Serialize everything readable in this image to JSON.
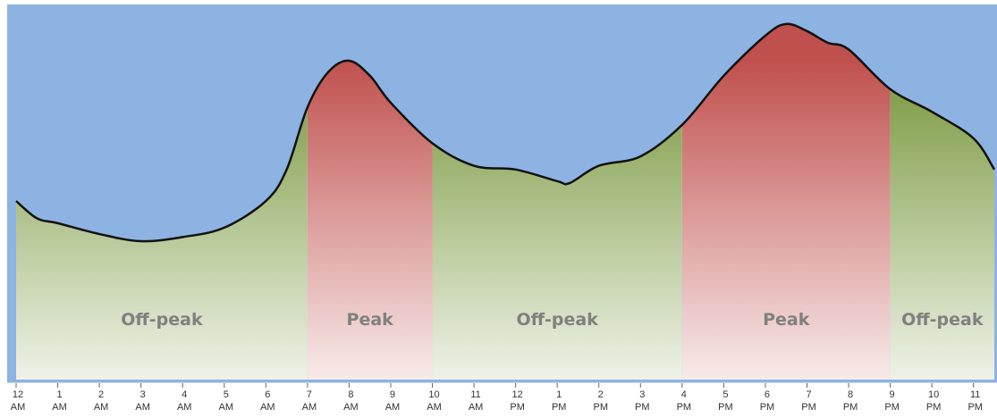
{
  "chart_data": {
    "type": "area",
    "x": [
      0,
      0.5,
      1,
      2,
      3,
      4,
      5,
      6,
      6.5,
      7,
      7.5,
      8,
      8.5,
      9,
      10,
      11,
      12,
      13,
      13.3,
      14,
      15,
      16,
      17,
      18,
      18.5,
      19,
      19.5,
      20,
      21,
      22,
      23,
      23.5
    ],
    "series": [
      {
        "values": [
          47.6,
          43,
          41.7,
          38.8,
          36.9,
          38,
          40.5,
          47.6,
          56,
          72.6,
          82,
          85,
          81,
          73.8,
          63,
          57,
          56,
          52.9,
          52.4,
          57,
          59.5,
          67.9,
          81,
          91.7,
          94.8,
          92.9,
          89.8,
          88,
          77.4,
          71.4,
          64.3,
          56
        ]
      }
    ],
    "xlim": [
      0,
      23.5
    ],
    "ylim": [
      0,
      100
    ],
    "xticks": [
      {
        "value": 0,
        "label": "12 AM"
      },
      {
        "value": 1,
        "label": "1 AM"
      },
      {
        "value": 2,
        "label": "2 AM"
      },
      {
        "value": 3,
        "label": "3 AM"
      },
      {
        "value": 4,
        "label": "4 AM"
      },
      {
        "value": 5,
        "label": "5 AM"
      },
      {
        "value": 6,
        "label": "6 AM"
      },
      {
        "value": 7,
        "label": "7 AM"
      },
      {
        "value": 8,
        "label": "8 AM"
      },
      {
        "value": 9,
        "label": "9 AM"
      },
      {
        "value": 10,
        "label": "10 AM"
      },
      {
        "value": 11,
        "label": "11 AM"
      },
      {
        "value": 12,
        "label": "12 PM"
      },
      {
        "value": 13,
        "label": "1 PM"
      },
      {
        "value": 14,
        "label": "2 PM"
      },
      {
        "value": 15,
        "label": "3 PM"
      },
      {
        "value": 16,
        "label": "4 PM"
      },
      {
        "value": 17,
        "label": "5 PM"
      },
      {
        "value": 18,
        "label": "6 PM"
      },
      {
        "value": 19,
        "label": "7 PM"
      },
      {
        "value": 20,
        "label": "8 PM"
      },
      {
        "value": 21,
        "label": "9 PM"
      },
      {
        "value": 22,
        "label": "10 PM"
      },
      {
        "value": 23,
        "label": "11 PM"
      }
    ],
    "zones": [
      {
        "label": "Off-peak",
        "start": 0,
        "end": 7,
        "color": "#76963a"
      },
      {
        "label": "Peak",
        "start": 7,
        "end": 10,
        "color": "#c0504d"
      },
      {
        "label": "Off-peak",
        "start": 10,
        "end": 16,
        "color": "#76963a"
      },
      {
        "label": "Peak",
        "start": 16,
        "end": 21,
        "color": "#c0504d"
      },
      {
        "label": "Off-peak",
        "start": 21,
        "end": 23.5,
        "color": "#76963a"
      }
    ],
    "background": "#8db3e2"
  }
}
